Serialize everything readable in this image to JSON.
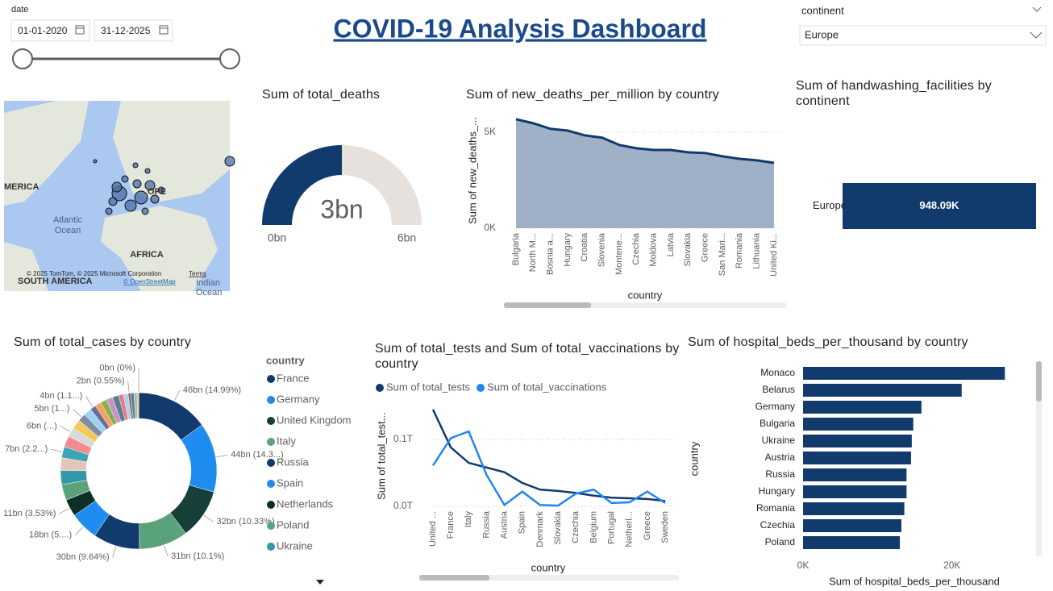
{
  "header": {
    "title": "COVID-19 Analysis Dashboard"
  },
  "date_slicer": {
    "label": "date",
    "start": "01-01-2020",
    "end": "31-12-2025"
  },
  "continent_slicer": {
    "label": "continent",
    "value": "Europe"
  },
  "map": {
    "labels": [
      "MERICA",
      "OPE",
      "Atlantic",
      "Ocean",
      "AFRICA",
      "SOUTH AMERICA",
      "Indian",
      "Ocean"
    ],
    "attribution": "© 2025 TomTom, © 2025 Microsoft Corporation",
    "terms": "Terms",
    "osm": "© OpenStreetMap"
  },
  "chart_data": [
    {
      "type": "gauge",
      "title": "Sum of total_deaths",
      "values": [
        3
      ],
      "value_labels": [
        "3bn"
      ],
      "ylim": [
        0,
        6
      ],
      "yticks": [
        {
          "value": 0,
          "label": "0bn"
        },
        {
          "value": 6,
          "label": "6bn"
        }
      ],
      "color": "#123b6d",
      "track_color": "#e6e1dc"
    },
    {
      "type": "area",
      "title": "Sum of new_deaths_per_million by country",
      "x_label": "country",
      "y_label": "Sum of new_deaths_...",
      "categories": [
        "Bulgaria",
        "North M...",
        "Bosnia a...",
        "Hungary",
        "Croatia",
        "Slovenia",
        "Montene...",
        "Czechia",
        "Moldova",
        "Latvia",
        "Slovakia",
        "Greece",
        "San Mari...",
        "Romania",
        "Lithuania",
        "United Ki..."
      ],
      "values": [
        5670,
        5460,
        5170,
        5080,
        4830,
        4710,
        4330,
        4160,
        4070,
        4070,
        3950,
        3910,
        3740,
        3610,
        3530,
        3400
      ],
      "ylim": [
        0,
        6000
      ],
      "yticks": [
        {
          "value": 0,
          "label": "0K"
        },
        {
          "value": 5000,
          "label": "5K"
        }
      ],
      "color": "#123b6d",
      "fill_color": "#a0b1c7",
      "grid": true
    },
    {
      "type": "hbar",
      "title": "Sum of handwashing_facilities by continent",
      "categories": [
        "Europe"
      ],
      "values": [
        948090
      ],
      "value_labels": [
        "948.09K"
      ],
      "xlim": [
        0,
        948090
      ],
      "color": "#123b6d"
    },
    {
      "type": "donut",
      "title": "Sum of total_cases by country",
      "legend_title": "country",
      "categories": [
        "France",
        "Germany",
        "United Kingdom",
        "Italy",
        "Russia",
        "Spain",
        "Netherlands",
        "Poland",
        "Ukraine",
        null,
        null,
        null,
        null,
        null,
        null,
        null,
        null,
        null,
        null,
        null,
        null,
        null,
        null,
        null,
        null,
        null,
        null,
        null
      ],
      "values": [
        46,
        44,
        31.7,
        31,
        29.6,
        18,
        10.84,
        10,
        9,
        8,
        7,
        7,
        6,
        6,
        5,
        5,
        3.6,
        4,
        4,
        4,
        4,
        3,
        3,
        1.69,
        2,
        2,
        1,
        0
      ],
      "value_labels": [
        "46bn (14.99%)",
        "44bn (14.3...)",
        "32bn (10.33%)",
        "31bn (10.1%)",
        "30bn (9.64%)",
        "18bn (5....)",
        "11bn (3.53%)",
        null,
        null,
        null,
        "7bn (2.2...)",
        null,
        "6bn (...)",
        null,
        "5bn (1...)",
        null,
        "4bn (1.1...)",
        null,
        null,
        null,
        null,
        null,
        null,
        "2bn (0.55%)",
        null,
        null,
        null,
        "0bn (0%)"
      ],
      "colors": [
        "#123b6d",
        "#1f8cf0",
        "#173f3a",
        "#5aa27a",
        "#123b6d",
        "#1f8cf0",
        "#0f2e28",
        "#5aa27a",
        "#3598a8",
        "#e3c6b8",
        "#3aa6b6",
        "#f28a90",
        "#d9d9d9",
        "#f3c95a",
        "#7a8fa6",
        "#9ed3f0",
        "#6b6b9a",
        "#f5a25d",
        "#88b04b",
        "#c58fd0",
        "#5c7c8a",
        "#e07b91",
        "#b5cfe0",
        "#8c6d5a",
        "#4b7bb5",
        "#a3c585",
        "#d4a373",
        "#555555"
      ]
    },
    {
      "type": "line",
      "title": "Sum of total_tests and Sum of total_vaccinations by country",
      "x_label": "country",
      "y_label": "Sum of total_test...",
      "categories": [
        "United ...",
        "France",
        "Italy",
        "Russia",
        "Austria",
        "Spain",
        "Denmark",
        "Slovakia",
        "Czechia",
        "Belgium",
        "Portugal",
        "Netherl...",
        "Greece",
        "Sweden"
      ],
      "series": [
        {
          "name": "Sum of total_tests",
          "color": "#123b6d",
          "values": [
            0.1446,
            0.088,
            0.065,
            0.058,
            0.051,
            0.035,
            0.025,
            0.023,
            0.02,
            0.016,
            0.013,
            0.012,
            0.011,
            0.008
          ]
        },
        {
          "name": "Sum of total_vaccinations",
          "color": "#1f86ef",
          "values": [
            0.061,
            0.102,
            0.112,
            0.047,
            0.002,
            0.022,
            0.002,
            0.001,
            0.019,
            0.025,
            0.005,
            0.006,
            0.022,
            0.005
          ]
        }
      ],
      "ylim": [
        0,
        0.15
      ],
      "yticks": [
        {
          "value": 0,
          "label": "0.0T"
        },
        {
          "value": 0.1,
          "label": "0.1T"
        }
      ],
      "grid": true
    },
    {
      "type": "hbar",
      "title": "Sum of hospital_beds_per_thousand by country",
      "x_label": "Sum of hospital_beds_per_thousand",
      "y_label": "country",
      "categories": [
        "Monaco",
        "Belarus",
        "Germany",
        "Bulgaria",
        "Ukraine",
        "Austria",
        "Russia",
        "Hungary",
        "Romania",
        "Czechia",
        "Poland"
      ],
      "values": [
        27100,
        21300,
        15900,
        14800,
        14600,
        14500,
        13900,
        13900,
        13600,
        13200,
        13000
      ],
      "xlim": [
        0,
        27500
      ],
      "xticks": [
        {
          "value": 0,
          "label": "0K"
        },
        {
          "value": 20000,
          "label": "20K"
        }
      ],
      "color": "#123b6d"
    }
  ]
}
